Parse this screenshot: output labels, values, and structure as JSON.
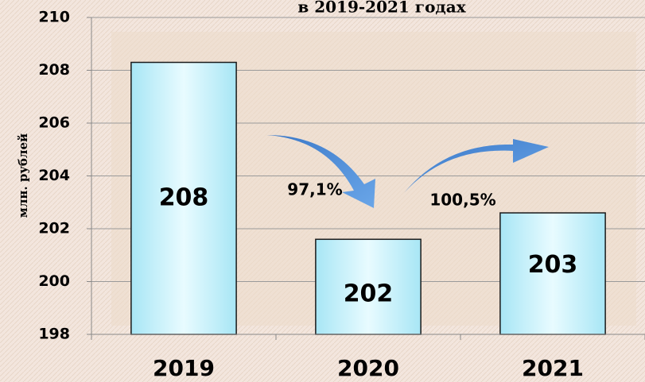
{
  "chart_data": {
    "type": "bar",
    "title": "в 2019-2021 годах",
    "y_label": "млн. рублей",
    "categories": [
      "2019",
      "2020",
      "2021"
    ],
    "values": [
      208.3,
      201.6,
      202.6
    ],
    "value_labels": [
      "208",
      "202",
      "203"
    ],
    "color": "#b8eef8",
    "ylim": [
      198,
      210
    ],
    "yticks": [
      198,
      200,
      202,
      204,
      206,
      208,
      210
    ],
    "grid": true,
    "annotations": [
      "97,1%",
      "100,5%"
    ]
  }
}
